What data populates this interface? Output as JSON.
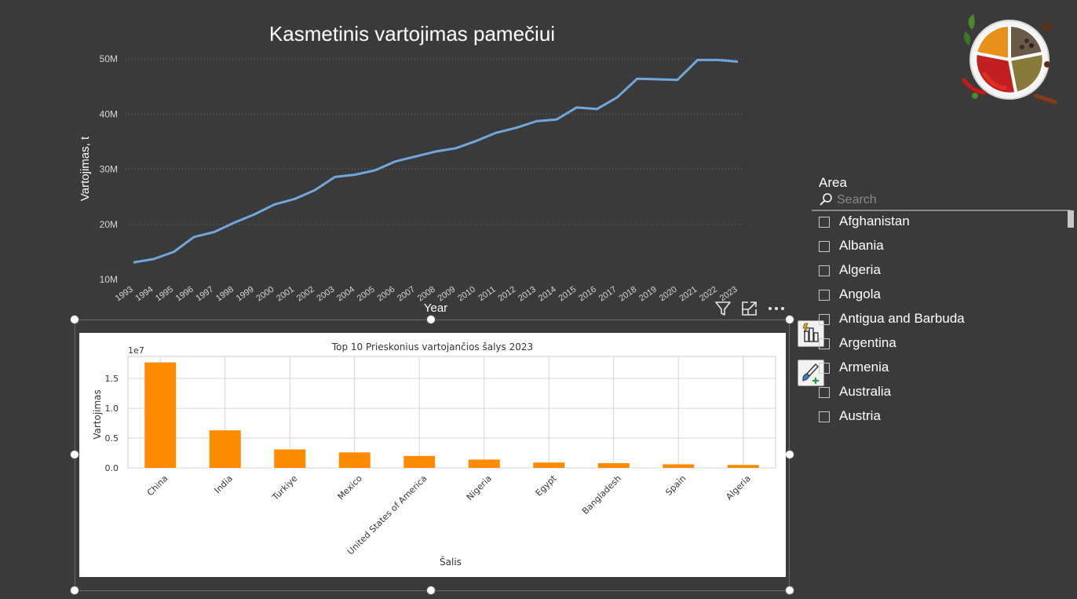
{
  "line_chart": {
    "title": "Kasmetinis vartojimas pamečiui",
    "xlabel": "Year",
    "ylabel": "Vartojimas, t",
    "line_color": "#6ea8dc",
    "chart_data": {
      "type": "line",
      "x": [
        1993,
        1994,
        1995,
        1996,
        1997,
        1998,
        1999,
        2000,
        2001,
        2002,
        2003,
        2004,
        2005,
        2006,
        2007,
        2008,
        2009,
        2010,
        2011,
        2012,
        2013,
        2014,
        2015,
        2016,
        2017,
        2018,
        2019,
        2020,
        2021,
        2022,
        2023
      ],
      "series": [
        {
          "values": [
            13.1,
            13.7,
            15.0,
            17.7,
            18.6,
            20.3,
            21.8,
            23.6,
            24.6,
            26.2,
            28.6,
            29.0,
            29.8,
            31.4,
            32.3,
            33.2,
            33.8,
            35.1,
            36.6,
            37.5,
            38.7,
            39.0,
            41.2,
            40.9,
            43.0,
            46.4,
            46.3,
            46.2,
            49.8,
            49.8,
            49.5
          ]
        }
      ],
      "y_unit": "M",
      "yticks": [
        "10M",
        "20M",
        "30M",
        "40M",
        "50M"
      ],
      "ylim": [
        10,
        51
      ],
      "grid": "horizontal dotted"
    }
  },
  "bar_chart": {
    "title": "Top 10 Prieskonius vartojančios šalys 2023",
    "xlabel": "Šalis",
    "ylabel": "Vartojimas",
    "offset_label": "1e7",
    "bar_color": "#ff8c00",
    "chart_data": {
      "type": "bar",
      "categories": [
        "China",
        "India",
        "Turkiye",
        "Mexico",
        "United States of America",
        "Nigeria",
        "Egypt",
        "Bangladesh",
        "Spain",
        "Algeria"
      ],
      "values": [
        1.77,
        0.63,
        0.31,
        0.26,
        0.2,
        0.14,
        0.09,
        0.08,
        0.06,
        0.05
      ],
      "value_scale": "1e7",
      "yticks": [
        "0.0",
        "0.5",
        "1.0",
        "1.5"
      ],
      "ylim": [
        0,
        1.87
      ],
      "grid": true
    }
  },
  "visual_header": {
    "filter_icon": "filter-icon",
    "focus_icon": "focus-mode-icon",
    "more_icon": "more-options-icon"
  },
  "side_buttons": {
    "format_icon": "build-visual-icon",
    "analytics_icon": "format-brush-icon"
  },
  "slicer": {
    "title": "Area",
    "search_placeholder": "Search",
    "items": [
      "Afghanistan",
      "Albania",
      "Algeria",
      "Angola",
      "Antigua and Barbuda",
      "Argentina",
      "Armenia",
      "Australia",
      "Austria"
    ]
  },
  "logo": {
    "icon": "spices-bowl-logo"
  }
}
